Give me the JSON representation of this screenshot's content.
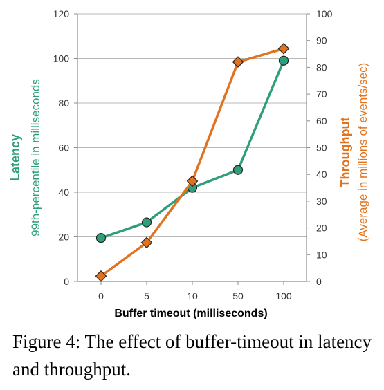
{
  "chart_data": {
    "type": "line",
    "categories": [
      "0",
      "5",
      "10",
      "50",
      "100"
    ],
    "xlabel": "Buffer timeout (milliseconds)",
    "grid": true,
    "series": [
      {
        "name": "Latency",
        "axis": "left",
        "color": "#2e9e7c",
        "marker": "circle",
        "values": [
          19.5,
          26.5,
          42,
          50,
          99
        ]
      },
      {
        "name": "Throughput",
        "axis": "right",
        "color": "#e07320",
        "marker": "diamond",
        "values": [
          2,
          14.5,
          37.5,
          82,
          87
        ]
      }
    ],
    "y_left": {
      "title": "Latency",
      "subtitle": "99th-percentile in milliseconds",
      "ylim": [
        0,
        120
      ],
      "ticks": [
        0,
        20,
        40,
        60,
        80,
        100,
        120
      ],
      "color": "#2e9e7c"
    },
    "y_right": {
      "title": "Throughput",
      "subtitle": "(Average in millions of events/sec)",
      "ylim": [
        0,
        100
      ],
      "ticks": [
        0,
        10,
        20,
        30,
        40,
        50,
        60,
        70,
        80,
        90,
        100
      ],
      "color": "#e07320"
    }
  },
  "caption": "Figure 4:  The effect of buffer-timeout in latency and throughput."
}
